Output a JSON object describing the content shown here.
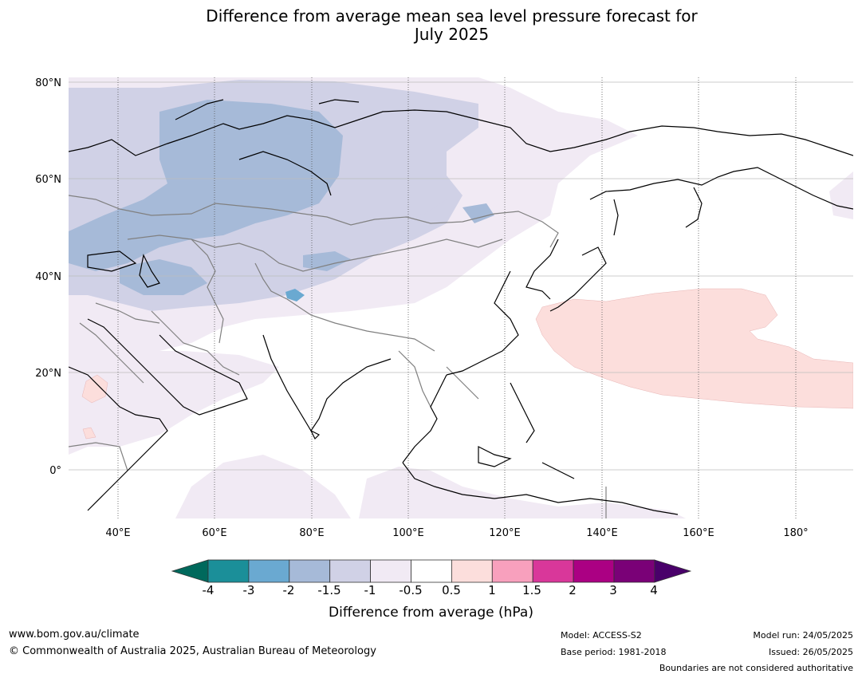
{
  "title": {
    "line1": "Difference from average mean sea level pressure forecast for",
    "line2": "July 2025"
  },
  "map": {
    "lat_labels": [
      "80°N",
      "60°N",
      "40°N",
      "20°N",
      "0°"
    ],
    "lon_labels": [
      "40°E",
      "60°E",
      "80°E",
      "100°E",
      "120°E",
      "140°E",
      "160°E",
      "180°"
    ],
    "colors": {
      "land_outline": "#000000",
      "border_outline": "#808080",
      "grid": "#bdbdbd"
    }
  },
  "colorbar": {
    "ticks": [
      "-4",
      "-3",
      "-2",
      "-1.5",
      "-1",
      "-0.5",
      "0.5",
      "1",
      "1.5",
      "2",
      "3",
      "4"
    ],
    "colors": [
      "#00695c",
      "#1b8f99",
      "#6aa9d1",
      "#a6bad8",
      "#d0d1e6",
      "#f1eaf4",
      "#ffffff",
      "#fcdedc",
      "#f8a0bd",
      "#d9379a",
      "#ab0083",
      "#7a0177",
      "#49006a"
    ],
    "label": "Difference from average (hPa)"
  },
  "footer": {
    "website": "www.bom.gov.au/climate",
    "copyright": "© Commonwealth of Australia 2025, Australian Bureau of Meteorology",
    "model": "Model: ACCESS-S2",
    "base_period": "Base period: 1981-2018",
    "model_run": "Model run: 24/05/2025",
    "issued": "Issued: 26/05/2025",
    "disclaimer": "Boundaries are not considered authoritative"
  }
}
